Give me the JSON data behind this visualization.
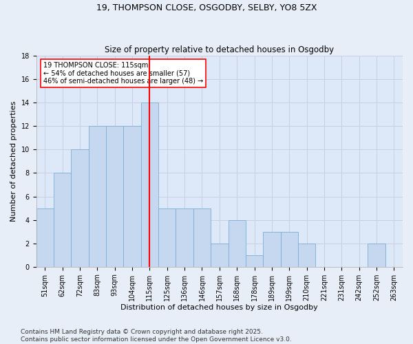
{
  "title": "19, THOMPSON CLOSE, OSGODBY, SELBY, YO8 5ZX",
  "subtitle": "Size of property relative to detached houses in Osgodby",
  "xlabel": "Distribution of detached houses by size in Osgodby",
  "ylabel": "Number of detached properties",
  "bar_color": "#c5d8f0",
  "bar_edge_color": "#7aadd4",
  "grid_color": "#c8d0e0",
  "background_color": "#dde8f8",
  "fig_background_color": "#e8eef8",
  "annotation_line_color": "red",
  "annotation_box_color": "red",
  "annotation_text": "19 THOMPSON CLOSE: 115sqm\n← 54% of detached houses are smaller (57)\n46% of semi-detached houses are larger (48) →",
  "annotation_fontsize": 7,
  "categories": [
    "51sqm",
    "62sqm",
    "72sqm",
    "83sqm",
    "93sqm",
    "104sqm",
    "115sqm",
    "125sqm",
    "136sqm",
    "146sqm",
    "157sqm",
    "168sqm",
    "178sqm",
    "189sqm",
    "199sqm",
    "210sqm",
    "221sqm",
    "231sqm",
    "242sqm",
    "252sqm",
    "263sqm"
  ],
  "values": [
    5,
    8,
    10,
    12,
    12,
    12,
    14,
    5,
    5,
    5,
    2,
    4,
    1,
    3,
    3,
    2,
    0,
    0,
    0,
    2,
    0
  ],
  "ylim": [
    0,
    18
  ],
  "yticks": [
    0,
    2,
    4,
    6,
    8,
    10,
    12,
    14,
    16,
    18
  ],
  "marker_index": 6,
  "footer": "Contains HM Land Registry data © Crown copyright and database right 2025.\nContains public sector information licensed under the Open Government Licence v3.0.",
  "footer_fontsize": 6.5,
  "title_fontsize": 9,
  "subtitle_fontsize": 8.5,
  "xlabel_fontsize": 8,
  "ylabel_fontsize": 8,
  "tick_fontsize": 7
}
